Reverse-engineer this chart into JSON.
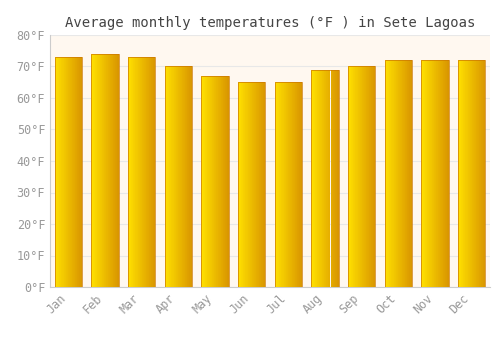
{
  "months": [
    "Jan",
    "Feb",
    "Mar",
    "Apr",
    "May",
    "Jun",
    "Jul",
    "Aug",
    "Sep",
    "Oct",
    "Nov",
    "Dec"
  ],
  "values": [
    73,
    74,
    73,
    70,
    67,
    65,
    65,
    69,
    70,
    72,
    72,
    72
  ],
  "bar_color_main": "#FFA500",
  "bar_color_light": "#FFD060",
  "bar_color_dark": "#CC7700",
  "title": "Average monthly temperatures (°F ) in Sete Lagoas",
  "ylim": [
    0,
    80
  ],
  "yticks": [
    0,
    10,
    20,
    30,
    40,
    50,
    60,
    70,
    80
  ],
  "ytick_labels": [
    "0°F",
    "10°F",
    "20°F",
    "30°F",
    "40°F",
    "50°F",
    "60°F",
    "70°F",
    "80°F"
  ],
  "background_color": "#FFFFFF",
  "plot_bg_color": "#FFF8F0",
  "grid_color": "#E8E8E8",
  "title_fontsize": 10,
  "tick_fontsize": 8.5,
  "tick_color": "#999999",
  "bar_width": 0.75
}
